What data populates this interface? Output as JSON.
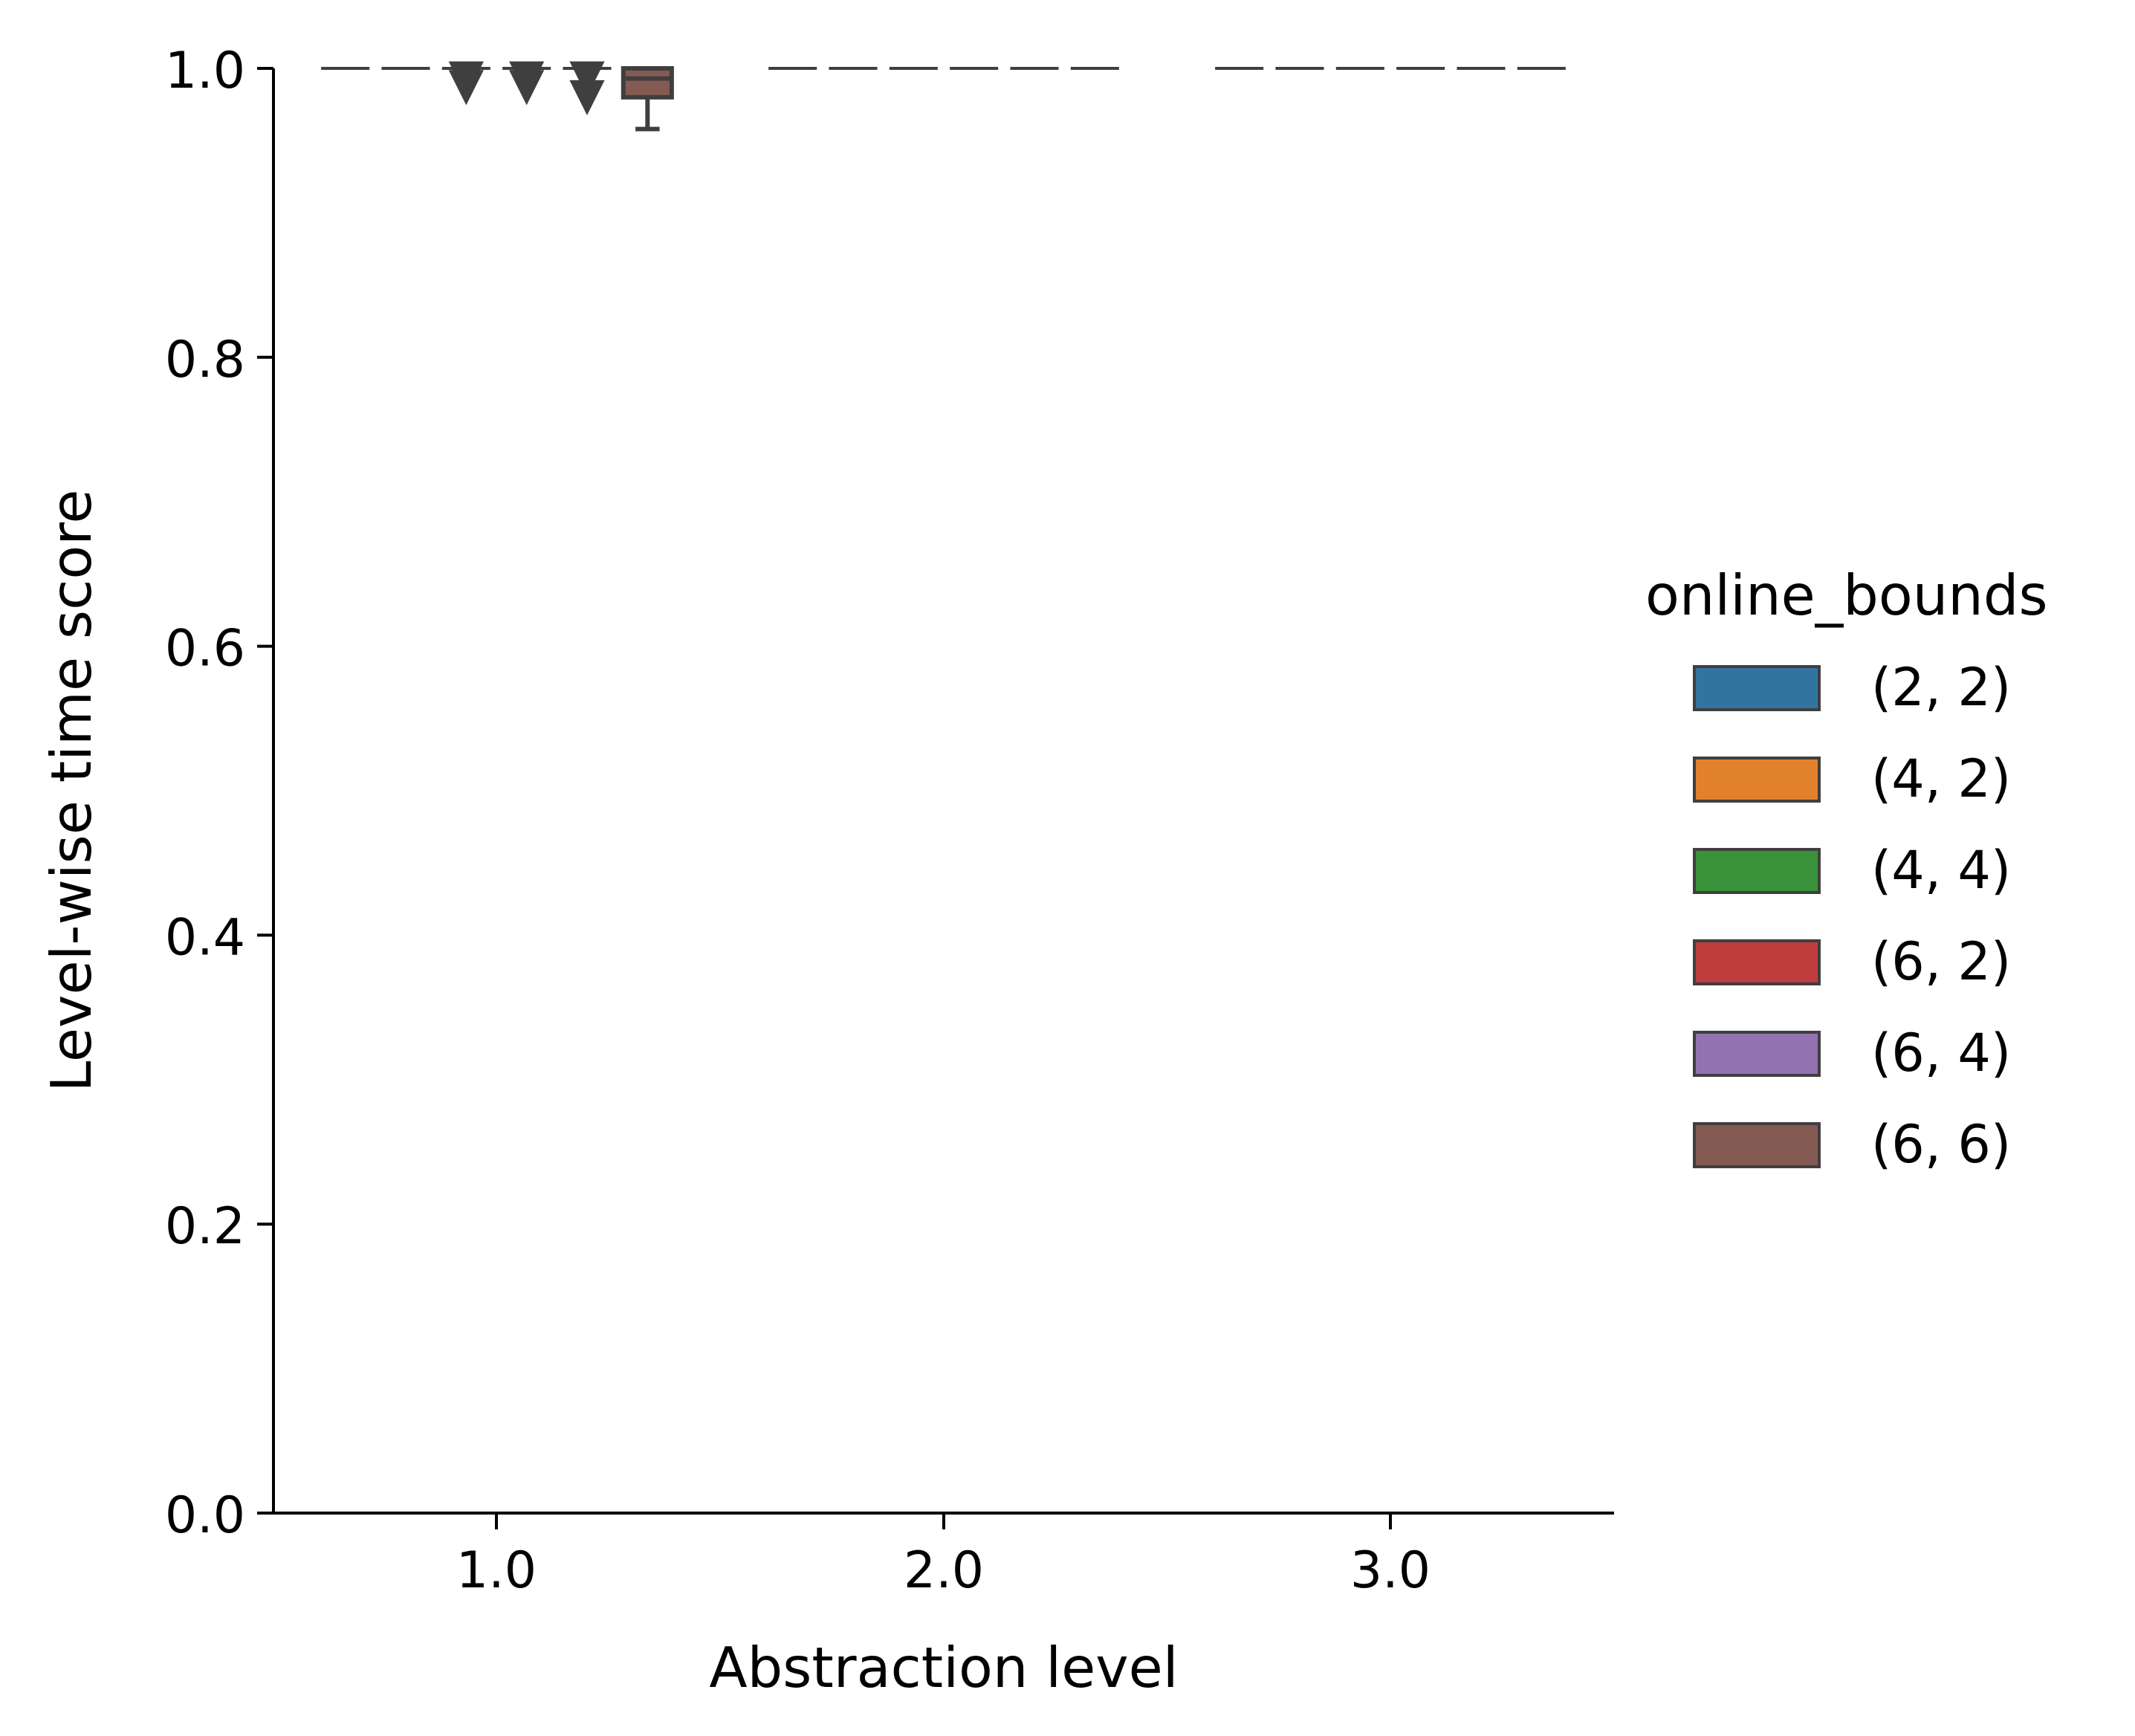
{
  "chart_data": {
    "type": "box",
    "xlabel": "Abstraction level",
    "ylabel": "Level-wise time score",
    "ylim": [
      0.0,
      1.0
    ],
    "yticks": [
      "0.0",
      "0.2",
      "0.4",
      "0.6",
      "0.8",
      "1.0"
    ],
    "categories": [
      "1.0",
      "2.0",
      "3.0"
    ],
    "grid": false,
    "legend": {
      "title": "online_bounds",
      "placement": "right",
      "entries": [
        {
          "label": "(2, 2)",
          "color": "#3274a1"
        },
        {
          "label": "(4, 2)",
          "color": "#e1812c"
        },
        {
          "label": "(4, 4)",
          "color": "#3a923a"
        },
        {
          "label": "(6, 2)",
          "color": "#c03d3e"
        },
        {
          "label": "(6, 4)",
          "color": "#9372b2"
        },
        {
          "label": "(6, 6)",
          "color": "#845b53"
        }
      ]
    },
    "series": [
      {
        "name": "(2, 2)",
        "boxes": [
          {
            "category": "1.0",
            "q1": 1.0,
            "median": 1.0,
            "q3": 1.0,
            "whisker_low": 1.0,
            "whisker_high": 1.0,
            "outliers": []
          },
          {
            "category": "2.0",
            "q1": 1.0,
            "median": 1.0,
            "q3": 1.0,
            "whisker_low": 1.0,
            "whisker_high": 1.0,
            "outliers": []
          },
          {
            "category": "3.0",
            "q1": 1.0,
            "median": 1.0,
            "q3": 1.0,
            "whisker_low": 1.0,
            "whisker_high": 1.0,
            "outliers": []
          }
        ]
      },
      {
        "name": "(4, 2)",
        "boxes": [
          {
            "category": "1.0",
            "q1": 1.0,
            "median": 1.0,
            "q3": 1.0,
            "whisker_low": 1.0,
            "whisker_high": 1.0,
            "outliers": []
          },
          {
            "category": "2.0",
            "q1": 1.0,
            "median": 1.0,
            "q3": 1.0,
            "whisker_low": 1.0,
            "whisker_high": 1.0,
            "outliers": []
          },
          {
            "category": "3.0",
            "q1": 1.0,
            "median": 1.0,
            "q3": 1.0,
            "whisker_low": 1.0,
            "whisker_high": 1.0,
            "outliers": []
          }
        ]
      },
      {
        "name": "(4, 4)",
        "boxes": [
          {
            "category": "1.0",
            "q1": 1.0,
            "median": 1.0,
            "q3": 1.0,
            "whisker_low": 1.0,
            "whisker_high": 1.0,
            "outliers": [
              0.987,
              0.993
            ]
          },
          {
            "category": "2.0",
            "q1": 1.0,
            "median": 1.0,
            "q3": 1.0,
            "whisker_low": 1.0,
            "whisker_high": 1.0,
            "outliers": []
          },
          {
            "category": "3.0",
            "q1": 1.0,
            "median": 1.0,
            "q3": 1.0,
            "whisker_low": 1.0,
            "whisker_high": 1.0,
            "outliers": []
          }
        ]
      },
      {
        "name": "(6, 2)",
        "boxes": [
          {
            "category": "1.0",
            "q1": 1.0,
            "median": 1.0,
            "q3": 1.0,
            "whisker_low": 1.0,
            "whisker_high": 1.0,
            "outliers": [
              0.987,
              0.993
            ]
          },
          {
            "category": "2.0",
            "q1": 1.0,
            "median": 1.0,
            "q3": 1.0,
            "whisker_low": 1.0,
            "whisker_high": 1.0,
            "outliers": []
          },
          {
            "category": "3.0",
            "q1": 1.0,
            "median": 1.0,
            "q3": 1.0,
            "whisker_low": 1.0,
            "whisker_high": 1.0,
            "outliers": []
          }
        ]
      },
      {
        "name": "(6, 4)",
        "boxes": [
          {
            "category": "1.0",
            "q1": 1.0,
            "median": 1.0,
            "q3": 1.0,
            "whisker_low": 1.0,
            "whisker_high": 1.0,
            "outliers": [
              0.98,
              0.993
            ]
          },
          {
            "category": "2.0",
            "q1": 1.0,
            "median": 1.0,
            "q3": 1.0,
            "whisker_low": 1.0,
            "whisker_high": 1.0,
            "outliers": []
          },
          {
            "category": "3.0",
            "q1": 1.0,
            "median": 1.0,
            "q3": 1.0,
            "whisker_low": 1.0,
            "whisker_high": 1.0,
            "outliers": []
          }
        ]
      },
      {
        "name": "(6, 6)",
        "boxes": [
          {
            "category": "1.0",
            "q1": 0.98,
            "median": 0.993,
            "q3": 1.0,
            "whisker_low": 0.958,
            "whisker_high": 1.0,
            "outliers": []
          },
          {
            "category": "2.0",
            "q1": 1.0,
            "median": 1.0,
            "q3": 1.0,
            "whisker_low": 1.0,
            "whisker_high": 1.0,
            "outliers": []
          },
          {
            "category": "3.0",
            "q1": 1.0,
            "median": 1.0,
            "q3": 1.0,
            "whisker_low": 1.0,
            "whisker_high": 1.0,
            "outliers": []
          }
        ]
      }
    ]
  }
}
